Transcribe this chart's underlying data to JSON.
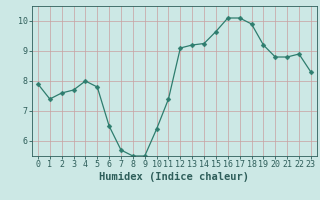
{
  "x": [
    0,
    1,
    2,
    3,
    4,
    5,
    6,
    7,
    8,
    9,
    10,
    11,
    12,
    13,
    14,
    15,
    16,
    17,
    18,
    19,
    20,
    21,
    22,
    23
  ],
  "y": [
    7.9,
    7.4,
    7.6,
    7.7,
    8.0,
    7.8,
    6.5,
    5.7,
    5.5,
    5.5,
    6.4,
    7.4,
    9.1,
    9.2,
    9.25,
    9.65,
    10.1,
    10.1,
    9.9,
    9.2,
    8.8,
    8.8,
    8.9,
    8.3
  ],
  "line_color": "#2e7d6e",
  "marker": "D",
  "marker_size": 2.5,
  "bg_color": "#cce8e5",
  "grid_color": "#c8a0a0",
  "xlabel": "Humidex (Indice chaleur)",
  "ylim": [
    5.5,
    10.5
  ],
  "xlim": [
    -0.5,
    23.5
  ],
  "yticks": [
    6,
    7,
    8,
    9,
    10
  ],
  "xticks": [
    0,
    1,
    2,
    3,
    4,
    5,
    6,
    7,
    8,
    9,
    10,
    11,
    12,
    13,
    14,
    15,
    16,
    17,
    18,
    19,
    20,
    21,
    22,
    23
  ],
  "font_color": "#2e5e5a",
  "tick_fontsize": 6,
  "label_fontsize": 7.5
}
